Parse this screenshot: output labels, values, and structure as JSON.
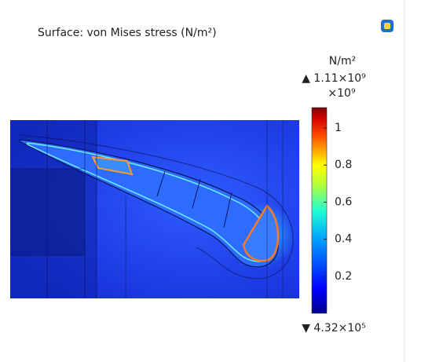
{
  "title": "Surface: von Mises stress (N/m²)",
  "colorbar": {
    "unit": "N/m²",
    "max_label": "▲ 1.11×10⁹",
    "scale_label": "×10⁹",
    "min_label": "▼ 4.32×10⁵",
    "lim": [
      0.000432,
      1.11
    ],
    "ticks": [
      0.2,
      0.4,
      0.6,
      0.8,
      1
    ]
  }
}
